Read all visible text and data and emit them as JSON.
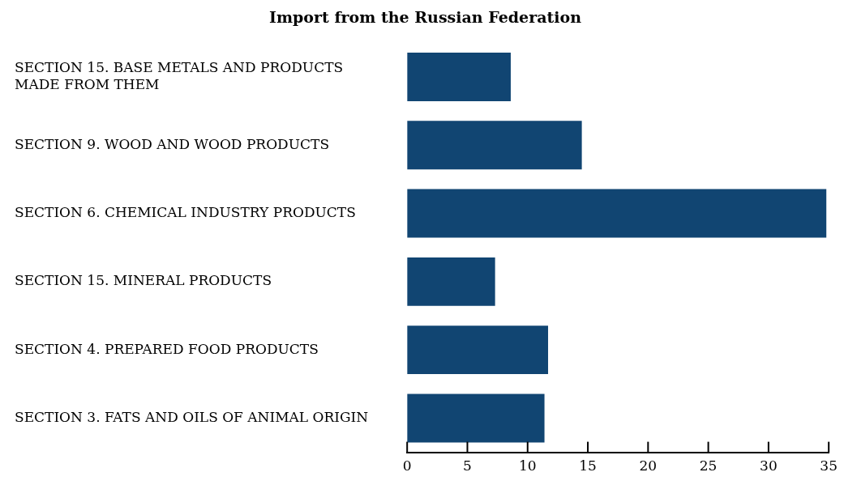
{
  "chart_data": {
    "type": "bar",
    "orientation": "horizontal",
    "title": "Import from the Russian Federation",
    "categories": [
      "SECTION 15. BASE METALS AND PRODUCTS MADE FROM THEM",
      "SECTION 9. WOOD AND WOOD PRODUCTS",
      "SECTION 6. CHEMICAL INDUSTRY PRODUCTS",
      "SECTION 15. MINERAL PRODUCTS",
      "SECTION 4. PREPARED FOOD PRODUCTS",
      "SECTION 3. FATS AND OILS OF ANIMAL ORIGIN"
    ],
    "values": [
      8.6,
      14.5,
      34.8,
      7.3,
      11.7,
      11.4
    ],
    "color": "#114572",
    "xlim": [
      0,
      35
    ],
    "xticks": [
      0,
      5,
      10,
      15,
      20,
      25,
      30,
      35
    ],
    "grid": false,
    "legend": false
  }
}
